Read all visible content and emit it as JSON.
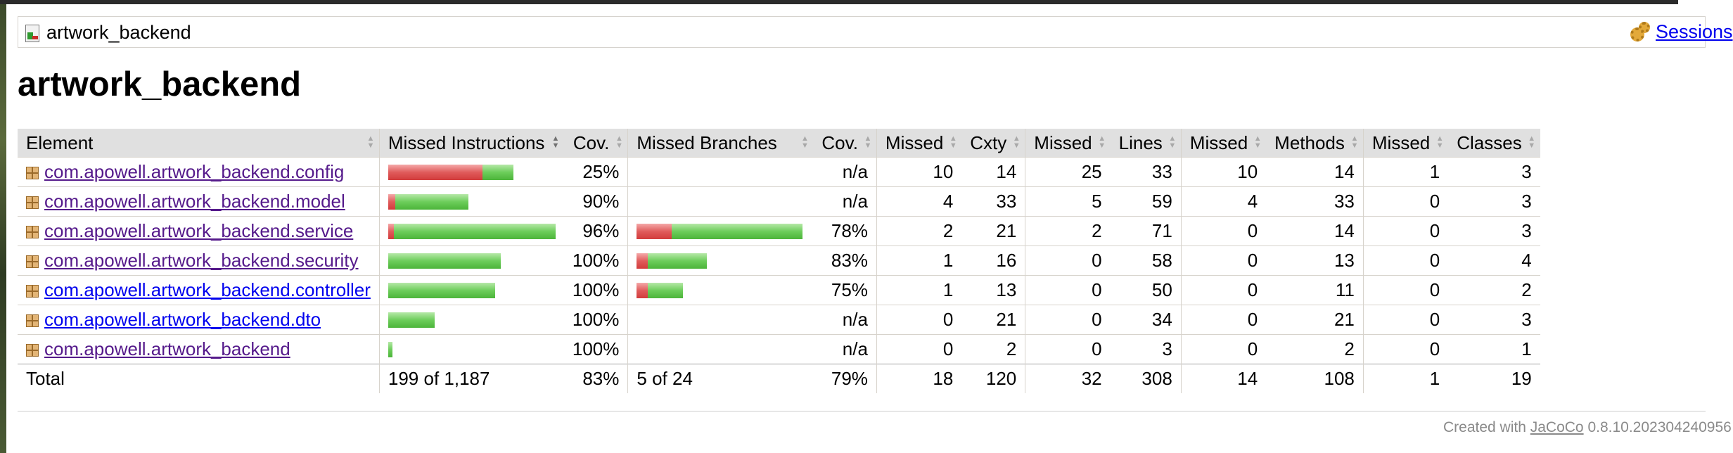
{
  "breadcrumb": {
    "label": "artwork_backend",
    "sessions_link": "Sessions"
  },
  "title": "artwork_backend",
  "table": {
    "headers": {
      "element": "Element",
      "missed_instructions": "Missed Instructions",
      "cov_instructions": "Cov.",
      "missed_branches": "Missed Branches",
      "cov_branches": "Cov.",
      "missed_cxty": "Missed",
      "cxty": "Cxty",
      "missed_lines": "Missed",
      "lines": "Lines",
      "missed_methods": "Missed",
      "methods": "Methods",
      "missed_classes": "Missed",
      "classes": "Classes"
    },
    "rows": [
      {
        "name": "com.apowell.artwork_backend.config",
        "instr_cov": "25%",
        "branch_cov": "n/a",
        "missed_cxty": "10",
        "cxty": "14",
        "missed_lines": "25",
        "lines": "33",
        "missed_methods": "10",
        "methods": "14",
        "missed_classes": "1",
        "classes": "3",
        "instr_bar": {
          "red": 134,
          "green": 44
        },
        "branch_bar": null,
        "visited": true
      },
      {
        "name": "com.apowell.artwork_backend.model",
        "instr_cov": "90%",
        "branch_cov": "n/a",
        "missed_cxty": "4",
        "cxty": "33",
        "missed_lines": "5",
        "lines": "59",
        "missed_methods": "4",
        "methods": "33",
        "missed_classes": "0",
        "classes": "3",
        "instr_bar": {
          "red": 10,
          "green": 104
        },
        "branch_bar": null,
        "visited": true
      },
      {
        "name": "com.apowell.artwork_backend.service",
        "instr_cov": "96%",
        "branch_cov": "78%",
        "missed_cxty": "2",
        "cxty": "21",
        "missed_lines": "2",
        "lines": "71",
        "missed_methods": "0",
        "methods": "14",
        "missed_classes": "0",
        "classes": "3",
        "instr_bar": {
          "red": 8,
          "green": 230
        },
        "branch_bar": {
          "red": 50,
          "green": 186
        },
        "visited": true
      },
      {
        "name": "com.apowell.artwork_backend.security",
        "instr_cov": "100%",
        "branch_cov": "83%",
        "missed_cxty": "1",
        "cxty": "16",
        "missed_lines": "0",
        "lines": "58",
        "missed_methods": "0",
        "methods": "13",
        "missed_classes": "0",
        "classes": "4",
        "instr_bar": {
          "red": 0,
          "green": 160
        },
        "branch_bar": {
          "red": 16,
          "green": 84
        },
        "visited": true
      },
      {
        "name": "com.apowell.artwork_backend.controller",
        "instr_cov": "100%",
        "branch_cov": "75%",
        "missed_cxty": "1",
        "cxty": "13",
        "missed_lines": "0",
        "lines": "50",
        "missed_methods": "0",
        "methods": "11",
        "missed_classes": "0",
        "classes": "2",
        "instr_bar": {
          "red": 0,
          "green": 152
        },
        "branch_bar": {
          "red": 16,
          "green": 50
        },
        "visited": false
      },
      {
        "name": "com.apowell.artwork_backend.dto",
        "instr_cov": "100%",
        "branch_cov": "n/a",
        "missed_cxty": "0",
        "cxty": "21",
        "missed_lines": "0",
        "lines": "34",
        "missed_methods": "0",
        "methods": "21",
        "missed_classes": "0",
        "classes": "3",
        "instr_bar": {
          "red": 0,
          "green": 66
        },
        "branch_bar": null,
        "visited": false
      },
      {
        "name": "com.apowell.artwork_backend",
        "instr_cov": "100%",
        "branch_cov": "n/a",
        "missed_cxty": "0",
        "cxty": "2",
        "missed_lines": "0",
        "lines": "3",
        "missed_methods": "0",
        "methods": "2",
        "missed_classes": "0",
        "classes": "1",
        "instr_bar": {
          "red": 0,
          "green": 6
        },
        "branch_bar": null,
        "visited": true
      }
    ],
    "total": {
      "label": "Total",
      "missed_instructions": "199 of 1,187",
      "instr_cov": "83%",
      "missed_branches": "5 of 24",
      "branch_cov": "79%",
      "missed_cxty": "18",
      "cxty": "120",
      "missed_lines": "32",
      "lines": "308",
      "missed_methods": "14",
      "methods": "108",
      "missed_classes": "1",
      "classes": "19"
    }
  },
  "footer": {
    "prefix": "Created with",
    "tool": "JaCoCo",
    "version": "0.8.10.202304240956"
  },
  "colors": {
    "missed": "#d23c3c",
    "covered": "#4cb43a",
    "header_bg": "#e0e0e0"
  }
}
